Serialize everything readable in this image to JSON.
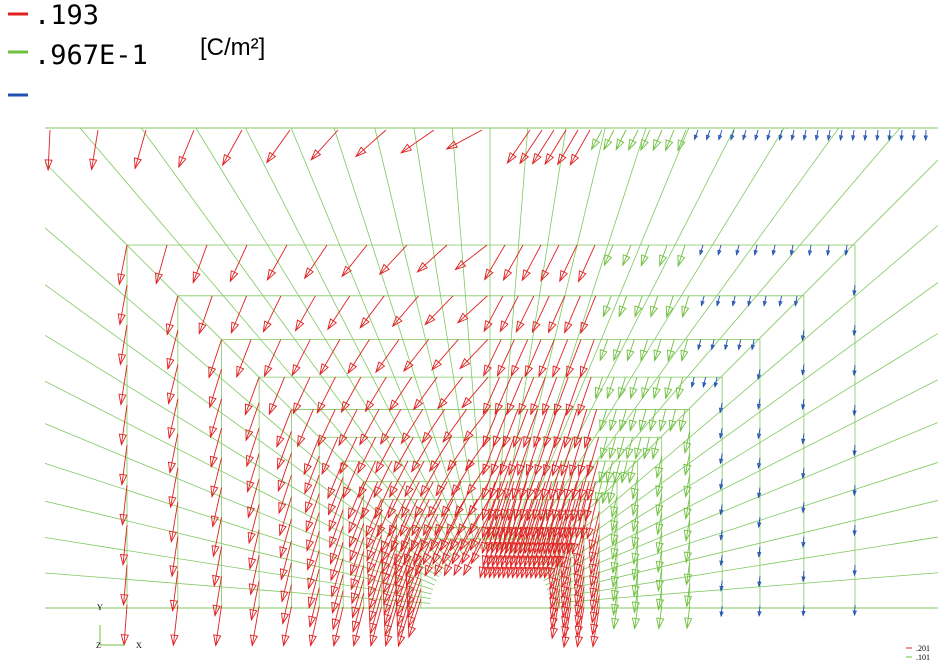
{
  "legend": {
    "entries": [
      {
        "label": ".193",
        "color": "#e02020"
      },
      {
        "label": ".967E-1",
        "color": "#70c040"
      },
      {
        "label": null,
        "color": "#2050b0"
      }
    ],
    "unit": "[C/m²]"
  },
  "triad": {
    "y": "Y",
    "z": "Z",
    "x": "X"
  },
  "corner_legend": [
    ".201",
    ".101"
  ]
}
